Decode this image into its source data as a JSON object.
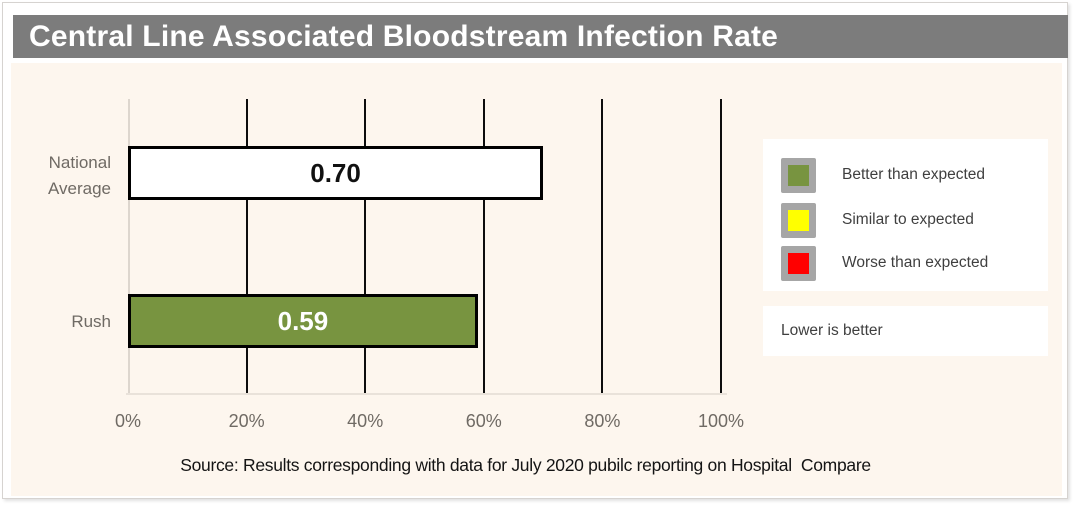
{
  "title": "Central Line Associated Bloodstream Infection Rate",
  "chart_data": {
    "type": "bar",
    "orientation": "horizontal",
    "title": "Central Line Associated Bloodstream Infection Rate",
    "categories": [
      "National Average",
      "Rush"
    ],
    "values": [
      0.7,
      0.59
    ],
    "value_labels": [
      "0.70",
      "0.59"
    ],
    "bar_colors": [
      "#ffffff",
      "#789440"
    ],
    "value_text_colors": [
      "#111111",
      "#ffffff"
    ],
    "xlim": [
      0,
      1
    ],
    "x_tick_labels": [
      "0%",
      "20%",
      "40%",
      "60%",
      "80%",
      "100%"
    ],
    "grid": true,
    "legend_position": "right"
  },
  "legend": {
    "items": [
      {
        "label": "Better than expected",
        "color": "#789440"
      },
      {
        "label": "Similar to expected",
        "color": "#ffff00"
      },
      {
        "label": "Worse than expected",
        "color": "#ff0000"
      }
    ]
  },
  "note": {
    "text": "Lower is better"
  },
  "source": {
    "text": "Source: Results corresponding with data for July 2020 pubilc reporting on Hospital  Compare"
  },
  "colors": {
    "title_bar_bg": "#7c7c7c",
    "title_text": "#ffffff",
    "panel_bg": "#fdf6ee",
    "gridline": "#0d0d0d",
    "bar_border": "#000000",
    "swatch_border": "#a6a6a6",
    "axis_text": "#6f6a64"
  }
}
